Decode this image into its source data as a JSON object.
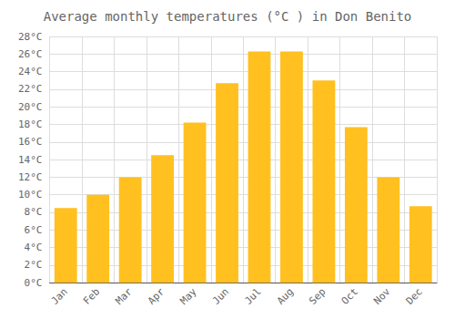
{
  "chart_data": {
    "type": "bar",
    "title": "Average monthly temperatures (°C ) in Don Benito",
    "categories": [
      "Jan",
      "Feb",
      "Mar",
      "Apr",
      "May",
      "Jun",
      "Jul",
      "Aug",
      "Sep",
      "Oct",
      "Nov",
      "Dec"
    ],
    "values": [
      8.5,
      10.0,
      12.0,
      14.5,
      18.2,
      22.7,
      26.3,
      26.3,
      23.0,
      17.7,
      12.0,
      8.7
    ],
    "color": "#FFC020",
    "ylim": [
      0,
      28
    ],
    "yticks": [
      {
        "value": 0,
        "label": "0°C"
      },
      {
        "value": 2,
        "label": "2°C"
      },
      {
        "value": 4,
        "label": "4°C"
      },
      {
        "value": 6,
        "label": "6°C"
      },
      {
        "value": 8,
        "label": "8°C"
      },
      {
        "value": 10,
        "label": "10°C"
      },
      {
        "value": 12,
        "label": "12°C"
      },
      {
        "value": 14,
        "label": "14°C"
      },
      {
        "value": 16,
        "label": "16°C"
      },
      {
        "value": 18,
        "label": "18°C"
      },
      {
        "value": 20,
        "label": "20°C"
      },
      {
        "value": 22,
        "label": "22°C"
      },
      {
        "value": 24,
        "label": "24°C"
      },
      {
        "value": 26,
        "label": "26°C"
      },
      {
        "value": 28,
        "label": "28°C"
      }
    ],
    "grid": true
  }
}
